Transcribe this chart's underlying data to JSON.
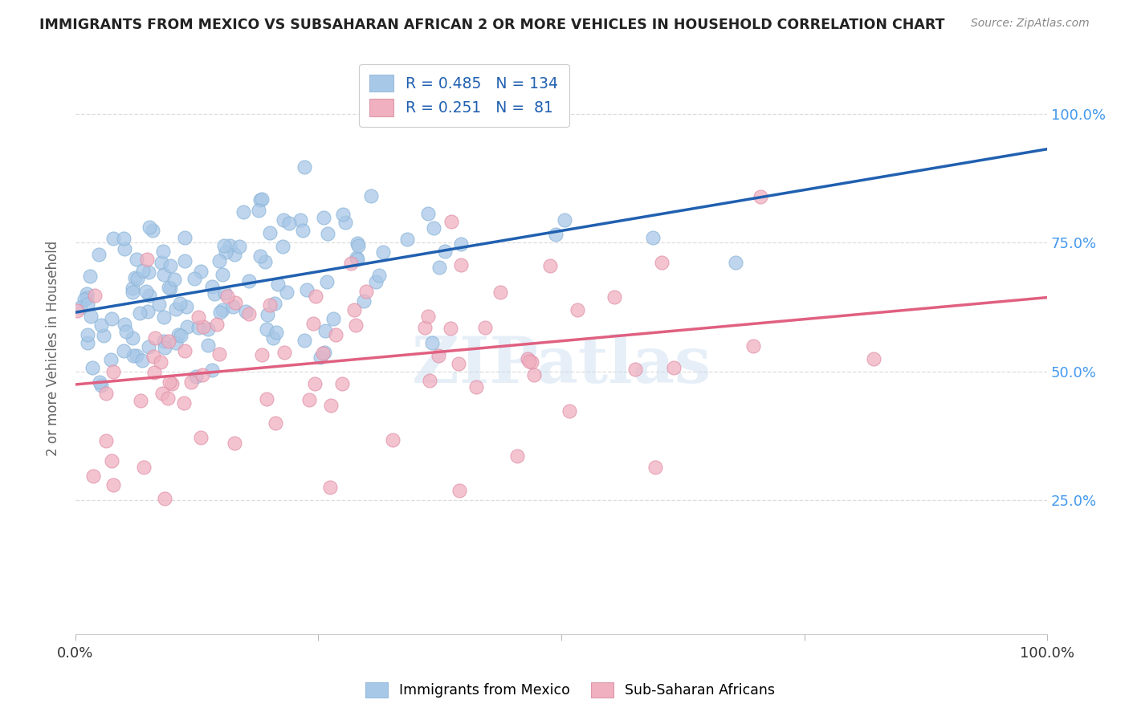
{
  "title": "IMMIGRANTS FROM MEXICO VS SUBSAHARAN AFRICAN 2 OR MORE VEHICLES IN HOUSEHOLD CORRELATION CHART",
  "source": "Source: ZipAtlas.com",
  "ylabel": "2 or more Vehicles in Household",
  "yticks_labels": [
    "25.0%",
    "50.0%",
    "75.0%",
    "100.0%"
  ],
  "ytick_vals": [
    0.25,
    0.5,
    0.75,
    1.0
  ],
  "watermark": "ZIPatlas",
  "blue_R": 0.485,
  "blue_N": 134,
  "pink_R": 0.251,
  "pink_N": 81,
  "blue_color": "#a8c8e8",
  "pink_color": "#f0b0c0",
  "blue_line_color": "#2060b0",
  "pink_line_color": "#e06080",
  "legend_text_color": "#2060b0",
  "title_color": "#222222",
  "source_color": "#888888",
  "background_color": "#ffffff",
  "grid_color": "#dddddd",
  "right_tick_color": "#4499ee",
  "blue_line_intercept": 0.625,
  "blue_line_slope": 0.245,
  "pink_line_intercept": 0.455,
  "pink_line_slope": 0.245
}
